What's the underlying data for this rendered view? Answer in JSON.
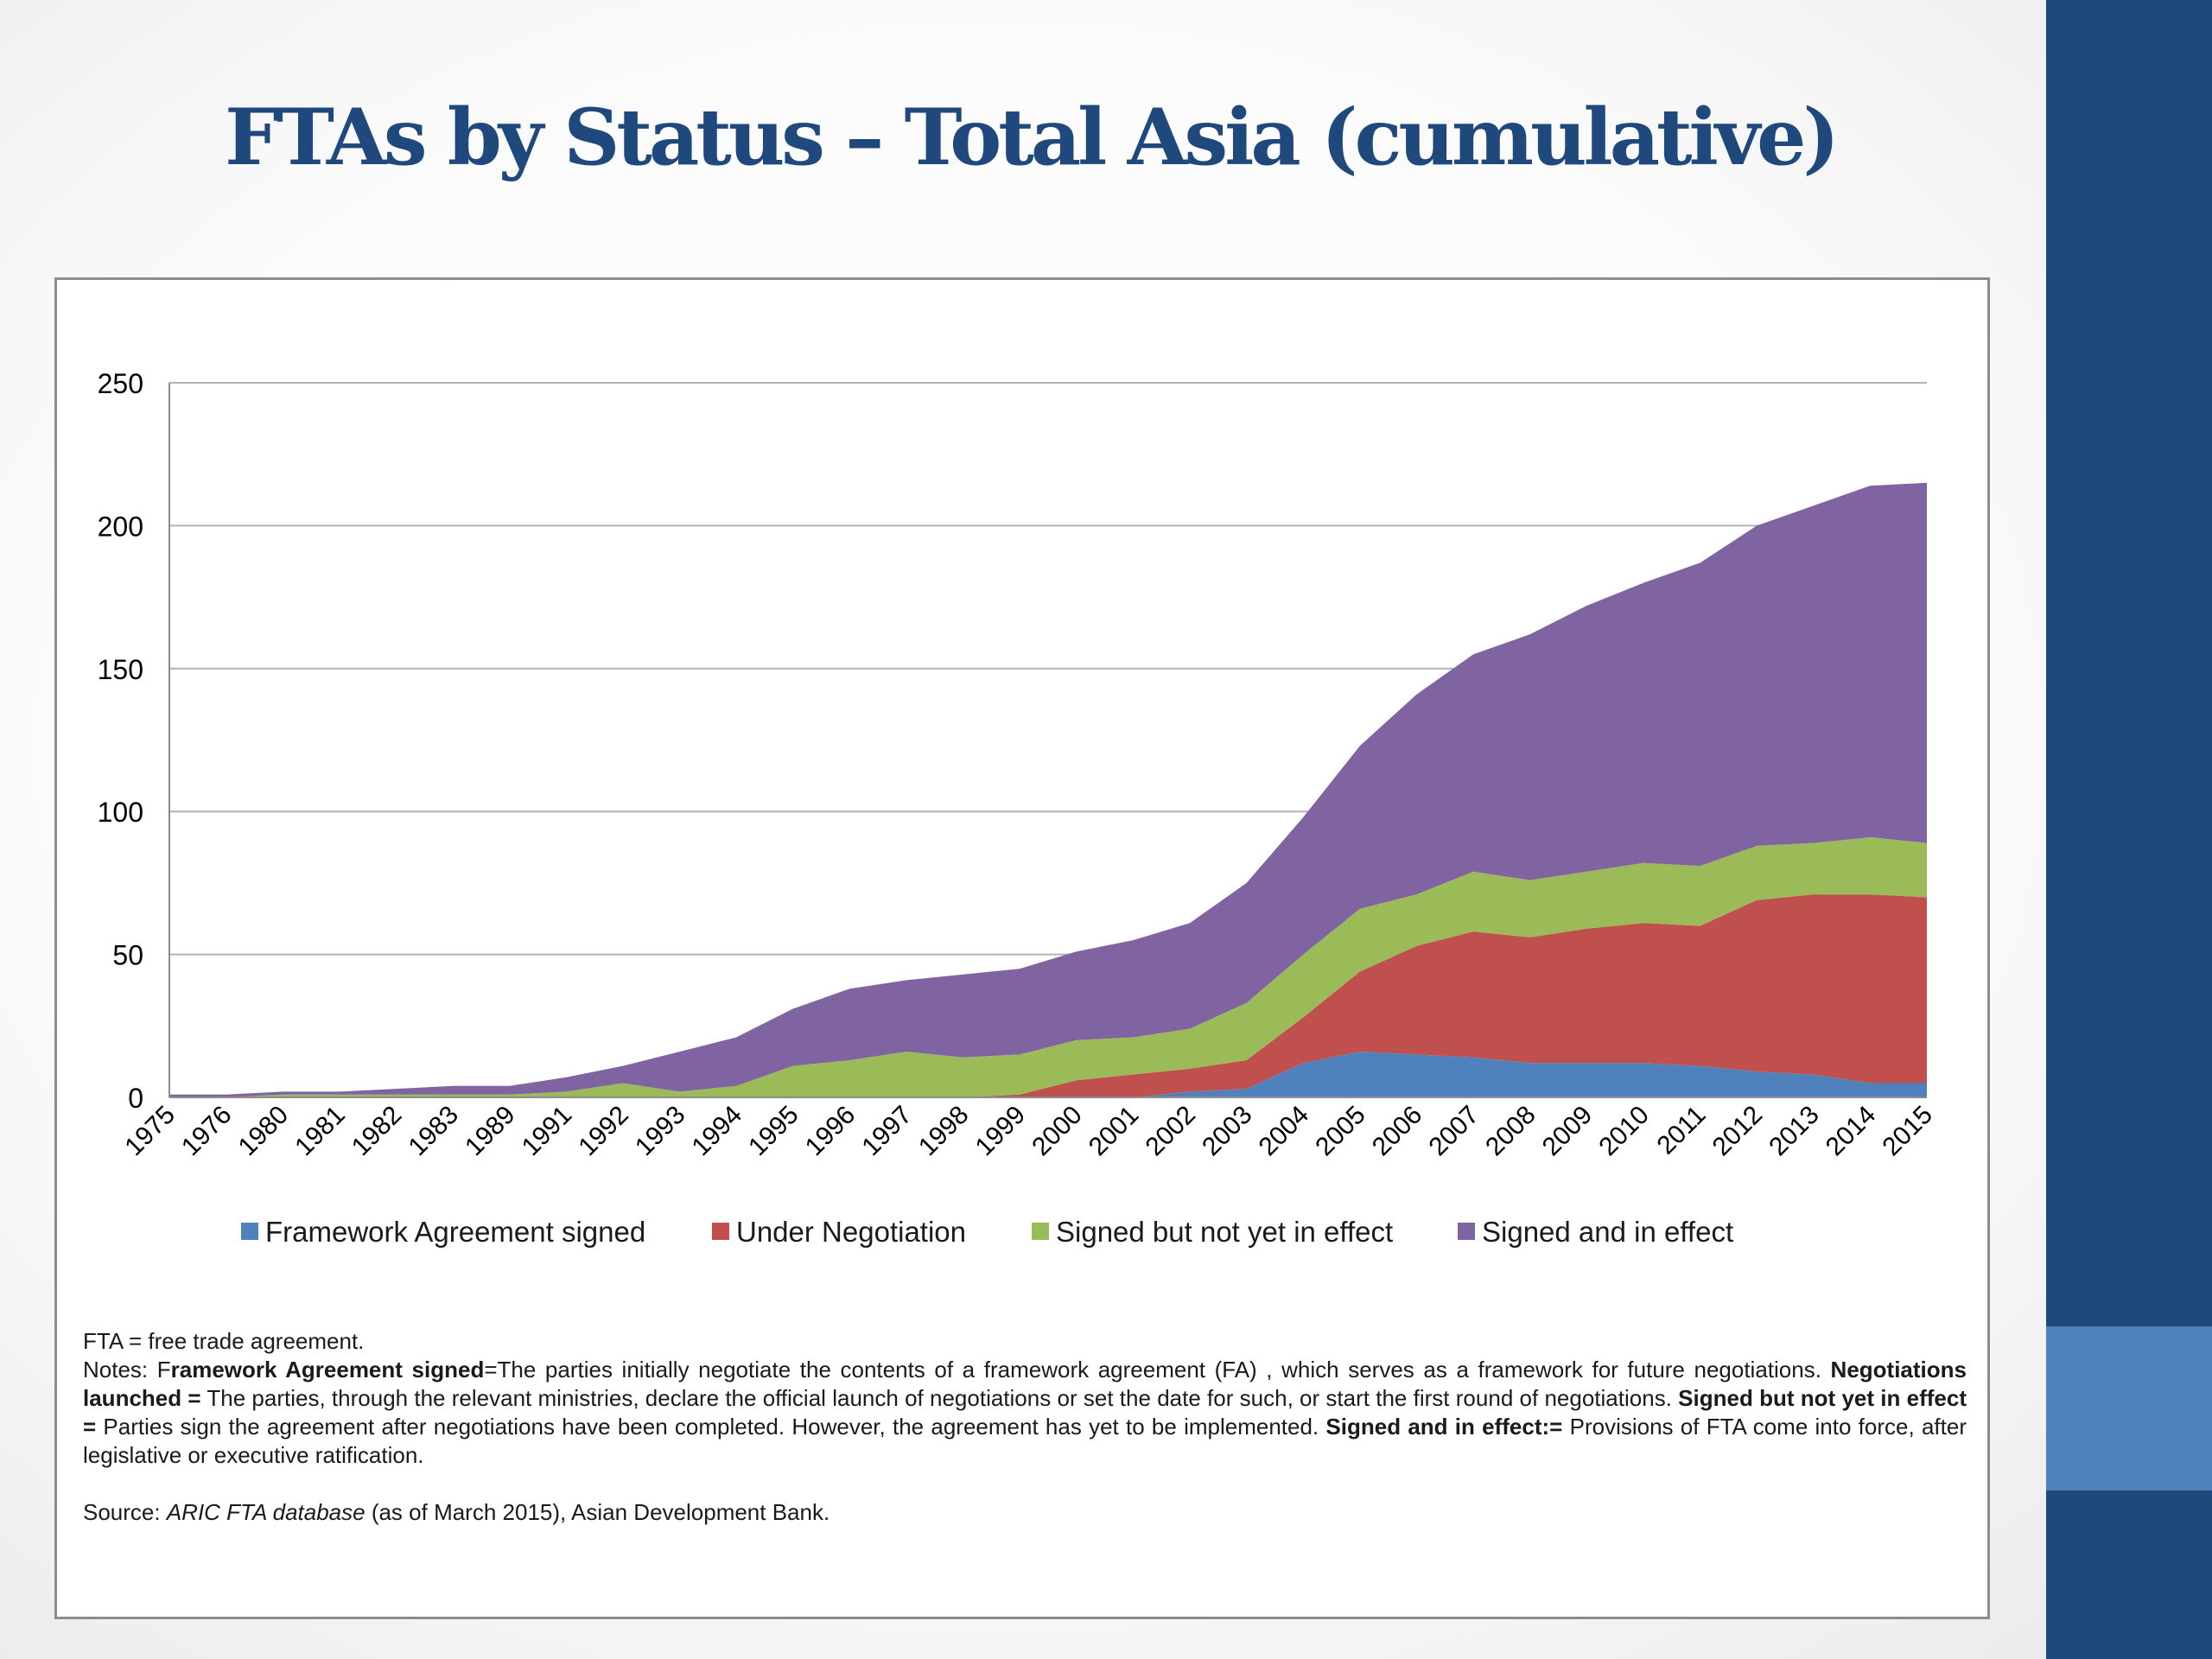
{
  "title": "FTAs by Status – Total Asia (cumulative)",
  "colors": {
    "sidebar": "#1f497d",
    "sidebar_accent": "#4f81bd",
    "title": "#1f497d"
  },
  "chart_data": {
    "type": "area",
    "stacked": true,
    "categories": [
      "1975",
      "1976",
      "1980",
      "1981",
      "1982",
      "1983",
      "1989",
      "1991",
      "1992",
      "1993",
      "1994",
      "1995",
      "1996",
      "1997",
      "1998",
      "1999",
      "2000",
      "2001",
      "2002",
      "2003",
      "2004",
      "2005",
      "2006",
      "2007",
      "2008",
      "2009",
      "2010",
      "2011",
      "2012",
      "2013",
      "2014",
      "2015"
    ],
    "ylim": [
      0,
      250
    ],
    "yticks": [
      0,
      50,
      100,
      150,
      200,
      250
    ],
    "grid": true,
    "legend_position": "bottom",
    "series": [
      {
        "name": "Framework Agreement signed",
        "color": "#4f81bd",
        "values": [
          0,
          0,
          0,
          0,
          0,
          0,
          0,
          0,
          0,
          0,
          0,
          0,
          0,
          0,
          0,
          0,
          0,
          0,
          2,
          3,
          12,
          16,
          15,
          14,
          12,
          12,
          12,
          11,
          9,
          8,
          5,
          5
        ]
      },
      {
        "name": "Under Negotiation",
        "color": "#c0504d",
        "values": [
          0,
          0,
          0,
          0,
          0,
          0,
          0,
          0,
          0,
          0,
          0,
          0,
          0,
          0,
          0,
          1,
          6,
          8,
          8,
          10,
          16,
          28,
          38,
          44,
          44,
          47,
          49,
          49,
          60,
          63,
          66,
          65
        ]
      },
      {
        "name": "Signed but not yet in effect",
        "color": "#9bbb59",
        "values": [
          0,
          0,
          1,
          1,
          1,
          1,
          1,
          2,
          5,
          2,
          4,
          11,
          13,
          16,
          14,
          14,
          14,
          13,
          14,
          20,
          22,
          22,
          18,
          21,
          20,
          20,
          21,
          21,
          19,
          18,
          20,
          19
        ]
      },
      {
        "name": "Signed and in effect",
        "color": "#8064a2",
        "values": [
          1,
          1,
          1,
          1,
          2,
          3,
          3,
          5,
          6,
          14,
          17,
          20,
          25,
          25,
          29,
          30,
          31,
          34,
          37,
          42,
          48,
          57,
          70,
          76,
          86,
          93,
          98,
          106,
          112,
          118,
          123,
          126
        ]
      }
    ]
  },
  "notes": {
    "line1": "FTA = free trade agreement.",
    "notes_prefix": "Notes: F",
    "fa_term": "ramework Agreement signed",
    "fa_def": "=The parties initially negotiate the contents of a framework agreement (FA) , which serves as a framework for future negotiations. ",
    "nl_term": "Negotiations launched =",
    "nl_def": " The parties, through the relevant ministries, declare the official launch of negotiations or set the date for such, or start the first round of negotiations. ",
    "sb_term": "Signed but not yet in effect =",
    "sb_def": " Parties sign the agreement after negotiations have been completed. However, the agreement has yet to be implemented. ",
    "se_term": "Signed and in effect:=",
    "se_def": " Provisions of FTA come into force, after legislative or executive ratification.",
    "source_prefix": "Source: ",
    "source_name": "ARIC FTA database",
    "source_suffix": " (as of March 2015), Asian Development Bank."
  }
}
